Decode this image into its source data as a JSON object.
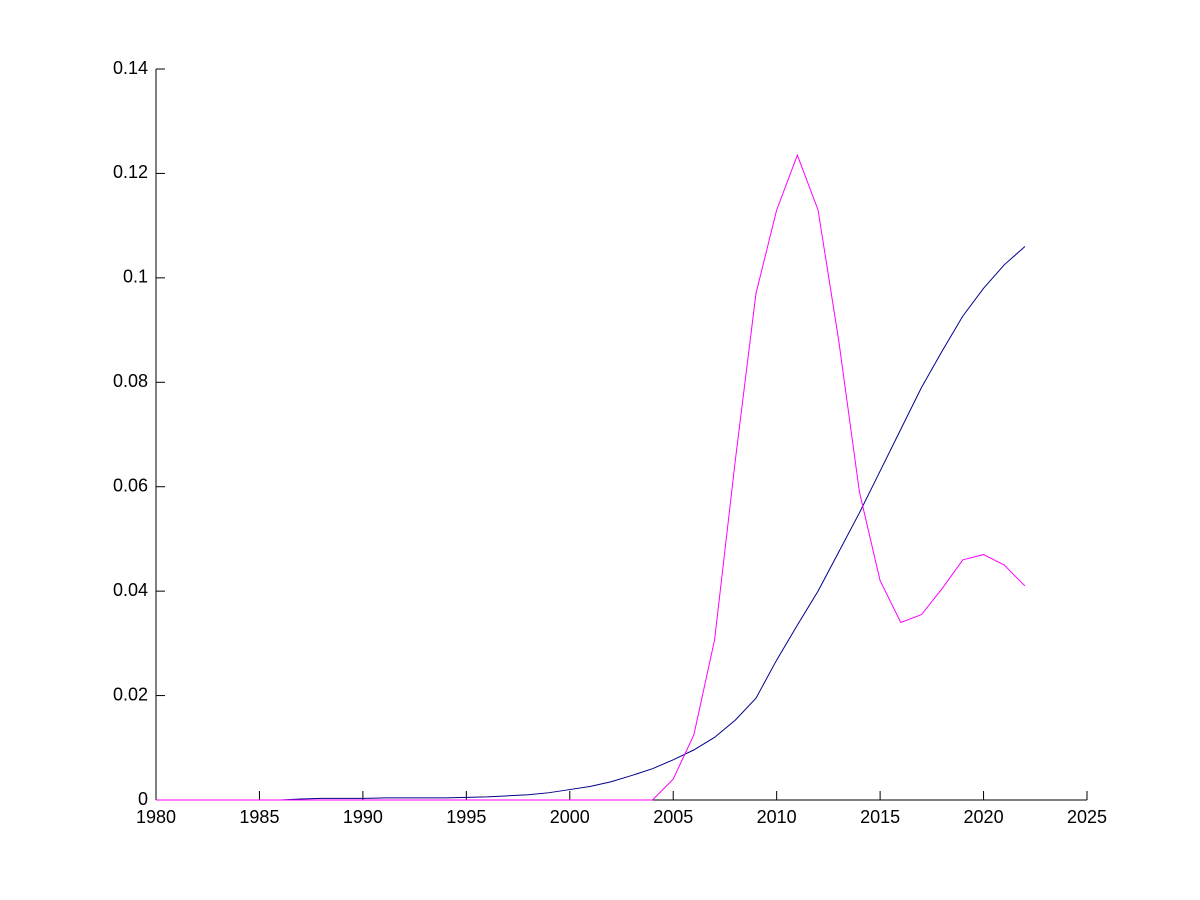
{
  "chart_data": {
    "type": "line",
    "x": [
      1980,
      1981,
      1982,
      1983,
      1984,
      1985,
      1986,
      1987,
      1988,
      1989,
      1990,
      1991,
      1992,
      1993,
      1994,
      1995,
      1996,
      1997,
      1998,
      1999,
      2000,
      2001,
      2002,
      2003,
      2004,
      2005,
      2006,
      2007,
      2008,
      2009,
      2010,
      2011,
      2012,
      2013,
      2014,
      2015,
      2016,
      2017,
      2018,
      2019,
      2020,
      2021,
      2022
    ],
    "series": [
      {
        "color": "#00008b",
        "values": [
          0,
          0,
          0,
          0,
          0,
          0,
          0,
          0.0002,
          0.0003,
          0.0003,
          0.0003,
          0.0004,
          0.0004,
          0.0004,
          0.0004,
          0.0005,
          0.0006,
          0.0008,
          0.001,
          0.0014,
          0.002,
          0.0026,
          0.0035,
          0.0047,
          0.006,
          0.0077,
          0.0096,
          0.012,
          0.0153,
          0.0195,
          0.0268,
          0.0335,
          0.04,
          0.0475,
          0.055,
          0.063,
          0.071,
          0.079,
          0.086,
          0.0927,
          0.098,
          0.1025,
          0.106
        ]
      },
      {
        "color": "#ff00ff",
        "values": [
          0,
          0,
          0,
          0,
          0,
          0,
          0,
          0,
          0,
          0,
          0,
          0,
          0,
          0,
          0,
          0,
          0,
          0,
          0,
          0,
          0,
          0,
          0,
          0,
          0,
          0.004,
          0.0125,
          0.0307,
          0.065,
          0.097,
          0.113,
          0.1235,
          0.113,
          0.088,
          0.059,
          0.042,
          0.034,
          0.0355,
          0.0405,
          0.046,
          0.047,
          0.045,
          0.041
        ]
      }
    ],
    "xlim": [
      1980,
      2025
    ],
    "xticks": [
      1980,
      1985,
      1990,
      1995,
      2000,
      2005,
      2010,
      2015,
      2020,
      2025
    ],
    "ylim": [
      0,
      0.14
    ],
    "yticks": [
      0,
      0.02,
      0.04,
      0.06,
      0.08,
      0.1,
      0.12,
      0.14
    ]
  }
}
